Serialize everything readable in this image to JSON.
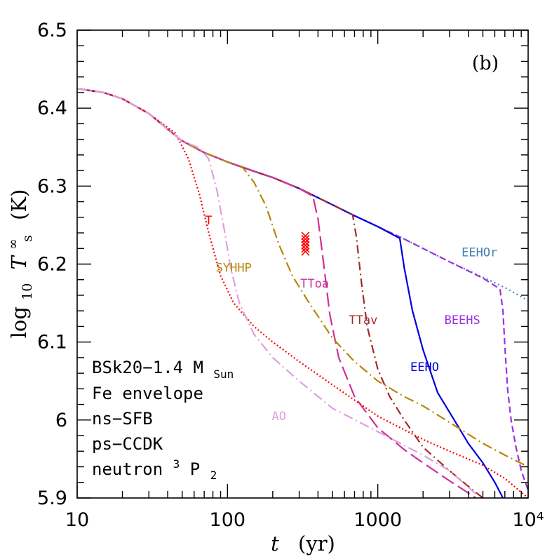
{
  "chart_data": {
    "type": "line",
    "panel_label": "(b)",
    "xlabel": {
      "var": "t",
      "unit": "(yr)"
    },
    "ylabel": {
      "prefix": "log",
      "sub": "10",
      "var": "T",
      "sup": "∞",
      "varsub": "s",
      "unit": "(K)"
    },
    "xscale": "log",
    "xlim": [
      10,
      10000
    ],
    "ylim": [
      5.9,
      6.5
    ],
    "xticks": [
      {
        "value": 10,
        "label": "10"
      },
      {
        "value": 100,
        "label": "100"
      },
      {
        "value": 1000,
        "label": "1000"
      },
      {
        "value": 10000,
        "label": "10⁴"
      }
    ],
    "yticks": [
      {
        "value": 5.9,
        "label": "5.9"
      },
      {
        "value": 6.0,
        "label": "6"
      },
      {
        "value": 6.1,
        "label": "6.1"
      },
      {
        "value": 6.2,
        "label": "6.2"
      },
      {
        "value": 6.3,
        "label": "6.3"
      },
      {
        "value": 6.4,
        "label": "6.4"
      },
      {
        "value": 6.5,
        "label": "6.5"
      }
    ],
    "notes": [
      {
        "text": "BSk20−1.4 M",
        "sub": "Sun"
      },
      {
        "text": "Fe envelope"
      },
      {
        "text": "ns−SFB"
      },
      {
        "text": "ps−CCDK"
      },
      {
        "text": "neutron ",
        "sup": "3",
        "tail": "P",
        "sub": "2"
      }
    ],
    "series": [
      {
        "name": "EEHOr",
        "color": "#4682b4",
        "dash": "2,4",
        "points": [
          [
            10,
            6.425
          ],
          [
            15,
            6.42
          ],
          [
            20,
            6.412
          ],
          [
            30,
            6.393
          ],
          [
            40,
            6.373
          ],
          [
            50,
            6.358
          ],
          [
            70,
            6.343
          ],
          [
            100,
            6.331
          ],
          [
            150,
            6.319
          ],
          [
            200,
            6.311
          ],
          [
            300,
            6.297
          ],
          [
            500,
            6.276
          ],
          [
            700,
            6.262
          ],
          [
            1000,
            6.248
          ],
          [
            1500,
            6.232
          ],
          [
            2000,
            6.22
          ],
          [
            3000,
            6.203
          ],
          [
            5000,
            6.183
          ],
          [
            7000,
            6.17
          ],
          [
            10000,
            6.153
          ]
        ]
      },
      {
        "name": "BEEHS",
        "color": "#9b30e0",
        "dash": "9,5",
        "points": [
          [
            10,
            6.425
          ],
          [
            15,
            6.42
          ],
          [
            20,
            6.412
          ],
          [
            30,
            6.393
          ],
          [
            40,
            6.373
          ],
          [
            50,
            6.358
          ],
          [
            70,
            6.343
          ],
          [
            100,
            6.331
          ],
          [
            150,
            6.319
          ],
          [
            200,
            6.311
          ],
          [
            300,
            6.297
          ],
          [
            500,
            6.276
          ],
          [
            700,
            6.262
          ],
          [
            1000,
            6.248
          ],
          [
            1500,
            6.232
          ],
          [
            2000,
            6.22
          ],
          [
            3000,
            6.203
          ],
          [
            5000,
            6.182
          ],
          [
            6500,
            6.168
          ],
          [
            6800,
            6.14
          ],
          [
            7000,
            6.095
          ],
          [
            7300,
            6.04
          ],
          [
            7700,
            6.0
          ],
          [
            8300,
            5.965
          ],
          [
            9000,
            5.935
          ],
          [
            10000,
            5.91
          ]
        ]
      },
      {
        "name": "EEHO",
        "color": "#0000dd",
        "dash": "",
        "points": [
          [
            10,
            6.425
          ],
          [
            15,
            6.42
          ],
          [
            20,
            6.412
          ],
          [
            30,
            6.393
          ],
          [
            40,
            6.373
          ],
          [
            50,
            6.358
          ],
          [
            70,
            6.343
          ],
          [
            100,
            6.331
          ],
          [
            150,
            6.319
          ],
          [
            200,
            6.311
          ],
          [
            300,
            6.297
          ],
          [
            500,
            6.276
          ],
          [
            700,
            6.262
          ],
          [
            1000,
            6.248
          ],
          [
            1400,
            6.233
          ],
          [
            1500,
            6.195
          ],
          [
            1700,
            6.14
          ],
          [
            2000,
            6.09
          ],
          [
            2500,
            6.035
          ],
          [
            3000,
            6.01
          ],
          [
            4000,
            5.97
          ],
          [
            5000,
            5.945
          ],
          [
            6000,
            5.92
          ],
          [
            6800,
            5.9
          ]
        ]
      },
      {
        "name": "TTav",
        "color": "#a52a2a",
        "dash": "12,5,2,5",
        "points": [
          [
            10,
            6.425
          ],
          [
            15,
            6.42
          ],
          [
            20,
            6.412
          ],
          [
            30,
            6.393
          ],
          [
            40,
            6.373
          ],
          [
            50,
            6.358
          ],
          [
            70,
            6.343
          ],
          [
            100,
            6.331
          ],
          [
            150,
            6.319
          ],
          [
            200,
            6.311
          ],
          [
            300,
            6.297
          ],
          [
            500,
            6.276
          ],
          [
            680,
            6.263
          ],
          [
            720,
            6.235
          ],
          [
            780,
            6.175
          ],
          [
            850,
            6.12
          ],
          [
            1000,
            6.065
          ],
          [
            1200,
            6.03
          ],
          [
            1500,
            6.0
          ],
          [
            2000,
            5.965
          ],
          [
            3000,
            5.935
          ],
          [
            4000,
            5.915
          ],
          [
            5000,
            5.9
          ]
        ]
      },
      {
        "name": "TToa",
        "color": "#d12f96",
        "dash": "20,7",
        "points": [
          [
            10,
            6.425
          ],
          [
            15,
            6.42
          ],
          [
            20,
            6.412
          ],
          [
            30,
            6.393
          ],
          [
            40,
            6.373
          ],
          [
            50,
            6.358
          ],
          [
            70,
            6.343
          ],
          [
            100,
            6.331
          ],
          [
            150,
            6.319
          ],
          [
            200,
            6.311
          ],
          [
            300,
            6.297
          ],
          [
            370,
            6.287
          ],
          [
            400,
            6.258
          ],
          [
            430,
            6.21
          ],
          [
            480,
            6.135
          ],
          [
            550,
            6.08
          ],
          [
            700,
            6.03
          ],
          [
            1000,
            5.99
          ],
          [
            1500,
            5.962
          ],
          [
            2000,
            5.945
          ],
          [
            3000,
            5.922
          ],
          [
            4500,
            5.9
          ]
        ]
      },
      {
        "name": "SYHHP",
        "color": "#b8860b",
        "dash": "14,5,2,5",
        "points": [
          [
            10,
            6.425
          ],
          [
            15,
            6.42
          ],
          [
            20,
            6.412
          ],
          [
            30,
            6.393
          ],
          [
            40,
            6.373
          ],
          [
            50,
            6.358
          ],
          [
            70,
            6.343
          ],
          [
            100,
            6.331
          ],
          [
            125,
            6.325
          ],
          [
            150,
            6.305
          ],
          [
            180,
            6.275
          ],
          [
            220,
            6.225
          ],
          [
            270,
            6.185
          ],
          [
            350,
            6.15
          ],
          [
            500,
            6.105
          ],
          [
            700,
            6.075
          ],
          [
            1000,
            6.05
          ],
          [
            1500,
            6.03
          ],
          [
            2000,
            6.018
          ],
          [
            3000,
            5.997
          ],
          [
            5000,
            5.97
          ],
          [
            7000,
            5.955
          ],
          [
            10000,
            5.94
          ]
        ]
      },
      {
        "name": "T",
        "color": "#ff0000",
        "dash": "2,3",
        "points": [
          [
            10,
            6.425
          ],
          [
            15,
            6.42
          ],
          [
            20,
            6.412
          ],
          [
            30,
            6.393
          ],
          [
            40,
            6.375
          ],
          [
            45,
            6.368
          ],
          [
            55,
            6.335
          ],
          [
            65,
            6.29
          ],
          [
            75,
            6.24
          ],
          [
            90,
            6.185
          ],
          [
            110,
            6.15
          ],
          [
            150,
            6.12
          ],
          [
            200,
            6.1
          ],
          [
            300,
            6.075
          ],
          [
            500,
            6.045
          ],
          [
            1000,
            6.005
          ],
          [
            2000,
            5.975
          ],
          [
            3000,
            5.96
          ],
          [
            5000,
            5.942
          ],
          [
            7000,
            5.925
          ],
          [
            10000,
            5.9
          ]
        ]
      },
      {
        "name": "AO",
        "color": "#dda0dd",
        "dash": "14,5,2,5",
        "points": [
          [
            10,
            6.425
          ],
          [
            15,
            6.42
          ],
          [
            20,
            6.412
          ],
          [
            30,
            6.393
          ],
          [
            40,
            6.373
          ],
          [
            50,
            6.358
          ],
          [
            65,
            6.349
          ],
          [
            75,
            6.335
          ],
          [
            85,
            6.295
          ],
          [
            95,
            6.245
          ],
          [
            105,
            6.195
          ],
          [
            120,
            6.15
          ],
          [
            150,
            6.11
          ],
          [
            200,
            6.08
          ],
          [
            300,
            6.05
          ],
          [
            500,
            6.015
          ],
          [
            1000,
            5.985
          ],
          [
            2000,
            5.955
          ],
          [
            3000,
            5.935
          ],
          [
            4500,
            5.905
          ]
        ]
      }
    ],
    "observations": {
      "marker": "x",
      "color": "#ff0000",
      "points": [
        [
          330,
          6.236
        ],
        [
          330,
          6.232
        ],
        [
          330,
          6.228
        ],
        [
          330,
          6.224
        ],
        [
          330,
          6.22
        ],
        [
          330,
          6.216
        ]
      ]
    },
    "series_labels": [
      {
        "text": "T",
        "color": "#ff0000",
        "t": 75,
        "logT": 6.251
      },
      {
        "text": "SYHHP",
        "color": "#b8860b",
        "t": 110,
        "logT": 6.19
      },
      {
        "text": "TToa",
        "color": "#d12f96",
        "t": 380,
        "logT": 6.17
      },
      {
        "text": "TTav",
        "color": "#a52a2a",
        "t": 800,
        "logT": 6.123
      },
      {
        "text": "EEHO",
        "color": "#0000dd",
        "t": 2050,
        "logT": 6.063
      },
      {
        "text": "BEEHS",
        "color": "#9b30e0",
        "t": 3650,
        "logT": 6.123
      },
      {
        "text": "EEHOr",
        "color": "#4682b4",
        "t": 4750,
        "logT": 6.21
      },
      {
        "text": "AO",
        "color": "#dda0dd",
        "t": 220,
        "logT": 6.0
      }
    ]
  }
}
